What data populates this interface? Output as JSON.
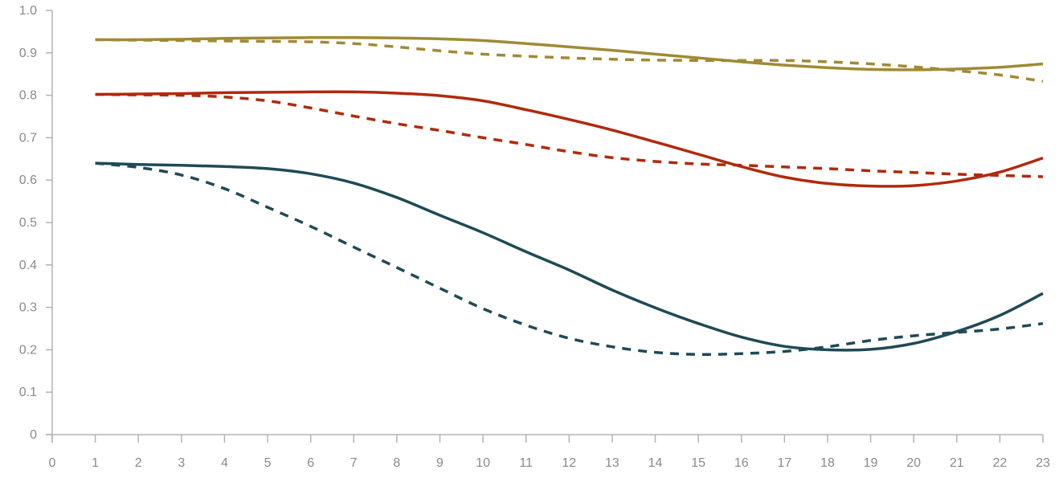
{
  "chart_data": {
    "type": "line",
    "title": "",
    "xlabel": "",
    "ylabel": "",
    "xlim": [
      0,
      23
    ],
    "ylim": [
      0,
      1.0
    ],
    "x_ticks": [
      "0",
      "1",
      "2",
      "3",
      "4",
      "5",
      "6",
      "7",
      "8",
      "9",
      "10",
      "11",
      "12",
      "13",
      "14",
      "15",
      "16",
      "17",
      "18",
      "19",
      "20",
      "21",
      "22",
      "23"
    ],
    "y_ticks": [
      "0",
      "0.1",
      "0.2",
      "0.3",
      "0.4",
      "0.5",
      "0.6",
      "0.7",
      "0.8",
      "0.9",
      "1.0"
    ],
    "grid": false,
    "legend": "none",
    "x": [
      1,
      2,
      3,
      4,
      5,
      6,
      7,
      8,
      9,
      10,
      11,
      12,
      13,
      14,
      15,
      16,
      17,
      18,
      19,
      20,
      21,
      22,
      23
    ],
    "series": [
      {
        "color": "#a08a35",
        "dash": "solid",
        "values": [
          0.931,
          0.931,
          0.932,
          0.934,
          0.935,
          0.936,
          0.936,
          0.935,
          0.933,
          0.929,
          0.922,
          0.914,
          0.906,
          0.897,
          0.888,
          0.879,
          0.871,
          0.865,
          0.861,
          0.86,
          0.862,
          0.866,
          0.874
        ]
      },
      {
        "color": "#a08a35",
        "dash": "dashed",
        "values": [
          0.931,
          0.93,
          0.929,
          0.928,
          0.927,
          0.926,
          0.922,
          0.914,
          0.905,
          0.897,
          0.892,
          0.888,
          0.885,
          0.883,
          0.882,
          0.882,
          0.882,
          0.879,
          0.874,
          0.867,
          0.858,
          0.848,
          0.833
        ]
      },
      {
        "color": "#b02a0c",
        "dash": "solid",
        "values": [
          0.802,
          0.803,
          0.804,
          0.806,
          0.807,
          0.808,
          0.808,
          0.805,
          0.799,
          0.787,
          0.766,
          0.743,
          0.718,
          0.69,
          0.661,
          0.632,
          0.607,
          0.592,
          0.586,
          0.587,
          0.598,
          0.619,
          0.652
        ]
      },
      {
        "color": "#b02a0c",
        "dash": "dashed",
        "values": [
          0.802,
          0.801,
          0.8,
          0.796,
          0.787,
          0.77,
          0.751,
          0.733,
          0.717,
          0.7,
          0.684,
          0.667,
          0.653,
          0.644,
          0.638,
          0.635,
          0.631,
          0.627,
          0.622,
          0.618,
          0.614,
          0.611,
          0.608
        ]
      },
      {
        "color": "#1f4a57",
        "dash": "solid",
        "values": [
          0.64,
          0.637,
          0.635,
          0.632,
          0.627,
          0.615,
          0.593,
          0.559,
          0.517,
          0.476,
          0.431,
          0.388,
          0.341,
          0.299,
          0.262,
          0.23,
          0.208,
          0.2,
          0.201,
          0.215,
          0.243,
          0.281,
          0.333
        ]
      },
      {
        "color": "#1f4a57",
        "dash": "dashed",
        "values": [
          0.64,
          0.63,
          0.612,
          0.58,
          0.536,
          0.491,
          0.442,
          0.394,
          0.345,
          0.297,
          0.258,
          0.227,
          0.207,
          0.194,
          0.189,
          0.191,
          0.196,
          0.207,
          0.222,
          0.233,
          0.241,
          0.249,
          0.262
        ]
      }
    ]
  }
}
